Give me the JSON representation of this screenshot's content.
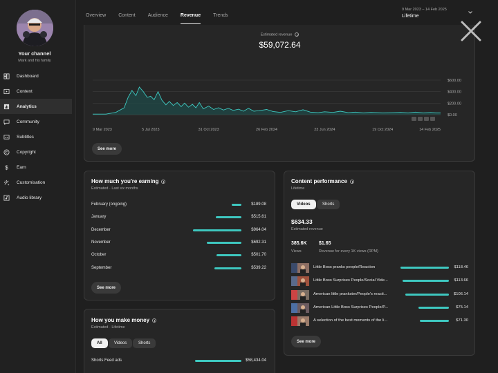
{
  "sidebar": {
    "channel_title": "Your channel",
    "channel_sub": "Mark and his family",
    "items": [
      {
        "label": "Dashboard",
        "icon": "dashboard-icon"
      },
      {
        "label": "Content",
        "icon": "content-icon"
      },
      {
        "label": "Analytics",
        "icon": "analytics-icon",
        "active": true
      },
      {
        "label": "Community",
        "icon": "community-icon"
      },
      {
        "label": "Subtitles",
        "icon": "subtitles-icon"
      },
      {
        "label": "Copyright",
        "icon": "copyright-icon"
      },
      {
        "label": "Earn",
        "icon": "earn-icon"
      },
      {
        "label": "Customisation",
        "icon": "customisation-icon"
      },
      {
        "label": "Audio library",
        "icon": "audio-library-icon"
      }
    ]
  },
  "tabs": [
    "Overview",
    "Content",
    "Audience",
    "Revenue",
    "Trends"
  ],
  "active_tab": "Revenue",
  "period": {
    "range": "9 Mar 2023 – 14 Feb 2025",
    "label": "Lifetime"
  },
  "revenue": {
    "label": "Estimated revenue",
    "value": "$59,072.64",
    "see_more": "See more"
  },
  "chart_data": {
    "type": "area",
    "x_ticks": [
      "9 Mar 2023",
      "5 Jul 2023",
      "31 Oct 2023",
      "26 Feb 2024",
      "23 Jun 2024",
      "19 Oct 2024",
      "14 Feb 2025"
    ],
    "y_ticks": [
      "$600.00",
      "$400.00",
      "$200.00",
      "$0.00"
    ],
    "ylim": [
      0,
      600
    ],
    "x": [
      "2023-03-09",
      "2023-04-05",
      "2023-04-25",
      "2023-05-12",
      "2023-05-20",
      "2023-05-28",
      "2023-06-05",
      "2023-06-12",
      "2023-06-20",
      "2023-06-28",
      "2023-07-05",
      "2023-07-12",
      "2023-07-20",
      "2023-07-28",
      "2023-08-05",
      "2023-08-12",
      "2023-08-20",
      "2023-08-28",
      "2023-09-05",
      "2023-09-12",
      "2023-09-20",
      "2023-09-28",
      "2023-10-05",
      "2023-10-12",
      "2023-10-20",
      "2023-10-31",
      "2023-11-10",
      "2023-11-20",
      "2023-11-30",
      "2023-12-10",
      "2023-12-20",
      "2023-12-31",
      "2024-01-10",
      "2024-01-20",
      "2024-01-31",
      "2024-02-10",
      "2024-02-26",
      "2024-03-10",
      "2024-03-25",
      "2024-04-10",
      "2024-04-25",
      "2024-05-10",
      "2024-05-25",
      "2024-06-10",
      "2024-06-23",
      "2024-07-10",
      "2024-07-25",
      "2024-08-10",
      "2024-08-25",
      "2024-09-10",
      "2024-09-25",
      "2024-10-10",
      "2024-10-19",
      "2024-11-10",
      "2024-11-25",
      "2024-12-10",
      "2024-12-25",
      "2025-01-10",
      "2025-01-25",
      "2025-02-05",
      "2025-02-14"
    ],
    "series": [
      {
        "values": [
          10,
          10,
          40,
          120,
          300,
          420,
          330,
          480,
          400,
          300,
          320,
          260,
          400,
          250,
          170,
          230,
          160,
          210,
          140,
          200,
          130,
          180,
          120,
          210,
          100,
          150,
          90,
          120,
          80,
          110,
          75,
          95,
          60,
          110,
          60,
          70,
          90,
          55,
          40,
          70,
          50,
          85,
          45,
          35,
          50,
          40,
          60,
          35,
          45,
          30,
          40,
          35,
          30,
          35,
          40,
          30,
          45,
          30,
          38,
          30,
          30
        ]
      }
    ],
    "grid": true,
    "legend": "none"
  },
  "earning": {
    "title": "How much you're earning",
    "sub": "Estimated · Last six months",
    "rows": [
      {
        "label": "February (ongoing)",
        "value": "$189.08",
        "fraction": 0.196
      },
      {
        "label": "January",
        "value": "$515.61",
        "fraction": 0.535
      },
      {
        "label": "December",
        "value": "$964.04",
        "fraction": 1.0
      },
      {
        "label": "November",
        "value": "$692.31",
        "fraction": 0.718
      },
      {
        "label": "October",
        "value": "$501.70",
        "fraction": 0.52
      },
      {
        "label": "September",
        "value": "$539.22",
        "fraction": 0.559
      }
    ],
    "see_more": "See more"
  },
  "money": {
    "title": "How you make money",
    "sub": "Estimated · Lifetime",
    "pills": [
      "All",
      "Videos",
      "Shorts"
    ],
    "rows": [
      {
        "label": "Shorts Feed ads",
        "value": "$58,434.04",
        "fraction": 1.0
      }
    ]
  },
  "performance": {
    "title": "Content performance",
    "sub": "Lifetime",
    "pills": [
      "Videos",
      "Shorts"
    ],
    "revenue": "$634.33",
    "revenue_label": "Estimated revenue",
    "views": "385.6K",
    "views_label": "Views",
    "rpm": "$1.65",
    "rpm_label": "Revenue for every 1K views (RPM)",
    "videos": [
      {
        "title": "Little Boss pranks people/Reaction",
        "value": "$118.46",
        "fraction": 1.0
      },
      {
        "title": "Little Boss Surprises People/Social Vide...",
        "value": "$113.66",
        "fraction": 0.959
      },
      {
        "title": "American little prankster/People's reacti...",
        "value": "$106.14",
        "fraction": 0.896
      },
      {
        "title": "American Little Boss Surprises People/P...",
        "value": "$75.14",
        "fraction": 0.634
      },
      {
        "title": "A selection of the best moments of the li...",
        "value": "$71.30",
        "fraction": 0.602
      }
    ],
    "see_more": "See more"
  },
  "colors": {
    "accent": "#3ec8c0",
    "bg": "#1f1f1f",
    "card": "#262626"
  }
}
